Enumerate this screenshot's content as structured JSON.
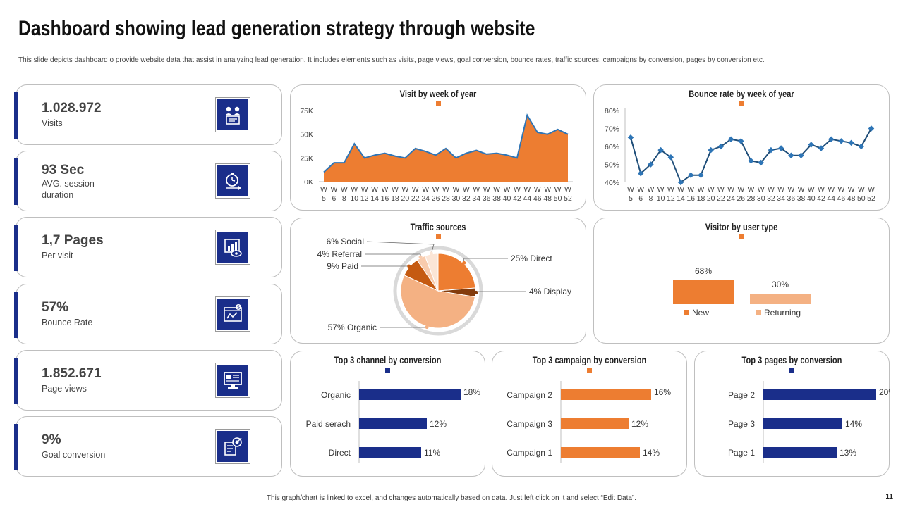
{
  "header": {
    "title": "Dashboard showing lead generation strategy through website",
    "subtitle": "This slide depicts dashboard o provide website data that assist in analyzing lead generation. It includes elements such as visits, page views, goal conversion, bounce rates, traffic sources, campaigns by conversion, pages by conversion etc."
  },
  "kpis": [
    {
      "value": "1.028.972",
      "label": "Visits",
      "icon": "visitors-icon"
    },
    {
      "value": "93 Sec",
      "label": "AVG. session duration",
      "icon": "stopwatch-icon"
    },
    {
      "value": "1,7 Pages",
      "label": "Per visit",
      "icon": "page-chart-icon"
    },
    {
      "value": "57%",
      "label": "Bounce Rate",
      "icon": "bounce-chart-icon"
    },
    {
      "value": "1.852.671",
      "label": "Page views",
      "icon": "monitor-icon"
    },
    {
      "value": "9%",
      "label": "Goal conversion",
      "icon": "target-icon"
    }
  ],
  "colors": {
    "navy": "#1a2e8a",
    "orange": "#ed7d31",
    "light_orange": "#f4b183",
    "line_blue": "#1f4e79",
    "display_brown": "#843c0c",
    "paid_brown": "#c55a11",
    "social_pale": "#fbe5d6"
  },
  "chart_data": [
    {
      "type": "area",
      "title": "Visit by week of year",
      "x": [
        "W 5",
        "W 6",
        "W 8",
        "W 10",
        "W 12",
        "W 14",
        "W 16",
        "W 18",
        "W 20",
        "W 22",
        "W 24",
        "W 26",
        "W 28",
        "W 30",
        "W 32",
        "W 34",
        "W 36",
        "W 38",
        "W 40",
        "W 42",
        "W 44",
        "W 46",
        "W 48",
        "W 50",
        "W 52"
      ],
      "values": [
        10000,
        20000,
        20000,
        40000,
        25000,
        28000,
        30000,
        27000,
        25000,
        35000,
        32000,
        28000,
        35000,
        25000,
        30000,
        33000,
        29000,
        30000,
        28000,
        25000,
        70000,
        52000,
        50000,
        55000,
        50000
      ],
      "yticks": [
        "0K",
        "25K",
        "50K",
        "75K"
      ],
      "ylim": [
        0,
        75000
      ]
    },
    {
      "type": "line",
      "title": "Bounce rate by week of year",
      "x": [
        "W 5",
        "W 6",
        "W 8",
        "W 10",
        "W 12",
        "W 14",
        "W 16",
        "W 18",
        "W 20",
        "W 22",
        "W 24",
        "W 26",
        "W 28",
        "W 30",
        "W 32",
        "W 34",
        "W 36",
        "W 38",
        "W 40",
        "W 42",
        "W 44",
        "W 46",
        "W 48",
        "W 50",
        "W 52"
      ],
      "values": [
        65,
        45,
        50,
        58,
        54,
        40,
        44,
        44,
        58,
        60,
        64,
        63,
        52,
        51,
        58,
        59,
        55,
        55,
        61,
        59,
        64,
        63,
        62,
        60,
        70
      ],
      "yticks": [
        "40%",
        "50%",
        "60%",
        "70%",
        "80%"
      ],
      "ylim": [
        40,
        80
      ]
    },
    {
      "type": "pie",
      "title": "Traffic sources",
      "slices": [
        {
          "name": "Direct",
          "value": 25,
          "label": "25% Direct",
          "color": "#ed7d31"
        },
        {
          "name": "Display",
          "value": 4,
          "label": "4% Display",
          "color": "#843c0c"
        },
        {
          "name": "Organic",
          "value": 57,
          "label": "57% Organic",
          "color": "#f4b183"
        },
        {
          "name": "Paid",
          "value": 9,
          "label": "9% Paid",
          "color": "#c55a11"
        },
        {
          "name": "Referral",
          "value": 4,
          "label": "4% Referral",
          "color": "#f8cbad"
        },
        {
          "name": "Social",
          "value": 6,
          "label": "6% Social",
          "color": "#fbe5d6"
        }
      ]
    },
    {
      "type": "bar",
      "title": "Visitor by user type",
      "categories": [
        "New",
        "Returning"
      ],
      "values": [
        68,
        30
      ],
      "value_labels": [
        "68%",
        "30%"
      ],
      "colors": [
        "#ed7d31",
        "#f4b183"
      ]
    },
    {
      "type": "bar",
      "title": "Top 3 channel by conversion",
      "categories": [
        "Organic",
        "Paid serach",
        "Direct"
      ],
      "values": [
        18,
        12,
        11
      ],
      "value_labels": [
        "18%",
        "12%",
        "11%"
      ],
      "color": "#1a2e8a"
    },
    {
      "type": "bar",
      "title": "Top 3 campaign by conversion",
      "categories": [
        "Campaign 2",
        "Campaign 3",
        "Campaign 1"
      ],
      "values": [
        16,
        12,
        14
      ],
      "value_labels": [
        "16%",
        "12%",
        "14%"
      ],
      "color": "#ed7d31"
    },
    {
      "type": "bar",
      "title": "Top 3 pages by conversion",
      "categories": [
        "Page 2",
        "Page 3",
        "Page 1"
      ],
      "values": [
        20,
        14,
        13
      ],
      "value_labels": [
        "20%",
        "14%",
        "13%"
      ],
      "color": "#1a2e8a"
    }
  ],
  "footer": {
    "note": "This graph/chart is linked to excel, and changes automatically based on data. Just left click on it and select “Edit Data”.",
    "page_number": "11"
  }
}
